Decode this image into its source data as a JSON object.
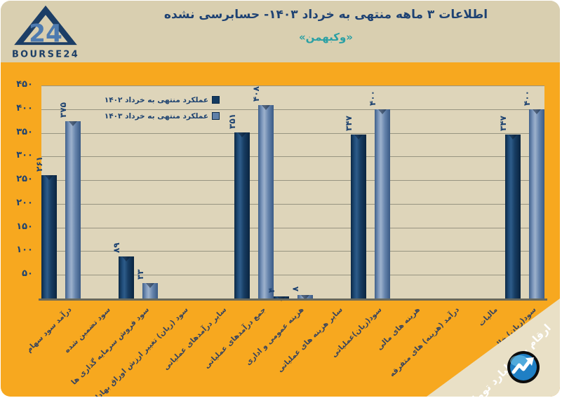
{
  "header": {
    "title": "اطلاعات ۳  ماهه منتهی به خرداد ۱۴۰۳- حسابرسی نشده",
    "subtitle": "«وکبهمن»",
    "logo_number": "24",
    "logo_text": "BOURSE24"
  },
  "chart_data": {
    "type": "bar",
    "title": "اطلاعات ۳ ماهه منتهی به خرداد ۱۴۰۳- حسابرسی نشده «وکبهمن»",
    "unit_note": "ارقام به میلیارد تومان",
    "categories": [
      "درآمد سود سهام",
      "سود تضمین شده",
      "سود فروش سرمایه گذاری ها",
      "سود (زیان) تغییر ارزش اوراق بهادار",
      "سایر درآمدهای عملیاتی",
      "جمع درآمدهای عملیاتی",
      "هزینه عمومی و اداری",
      "سایر هزینه های عملیاتی",
      "سود(زیان)عملیاتی",
      "هزینه های مالی",
      "درآمد (هزینه) های متفرقه",
      "مالیات",
      "سود(زیان) خالص"
    ],
    "series": [
      {
        "name": "عملکرد منتهی به خرداد ۱۴۰۲",
        "color": "#16395f",
        "values": [
          261,
          0,
          89,
          0,
          0,
          351,
          4,
          0,
          347,
          0,
          0,
          0,
          347
        ],
        "value_labels": [
          "۲۶۱",
          "",
          "۸۹",
          "",
          "",
          "۳۵۱",
          "۴",
          "",
          "۳۴۷",
          "",
          "",
          "",
          "۳۴۷"
        ]
      },
      {
        "name": "عملکرد منتهی به خرداد ۱۴۰۳",
        "color": "#6c89b0",
        "values": [
          375,
          0,
          33,
          0,
          0,
          408,
          8,
          0,
          400,
          0,
          0,
          0,
          400
        ],
        "value_labels": [
          "۳۷۵",
          "",
          "۳۳",
          "",
          "",
          "۴۰۸",
          "۸",
          "",
          "۴۰۰",
          "",
          "",
          "",
          "۴۰۰"
        ]
      }
    ],
    "ylim": [
      0,
      450
    ],
    "ytick_step": 50,
    "ytick_labels": [
      "۵۰",
      "۱۰۰",
      "۱۵۰",
      "۲۰۰",
      "۲۵۰",
      "۳۰۰",
      "۳۵۰",
      "۴۰۰",
      "۴۵۰"
    ],
    "grid": true,
    "legend_position": "top-left"
  },
  "colors": {
    "page_bg": "#d9cfb0",
    "panel_bg": "#f7a81f",
    "plot_bg": "#ded5ba",
    "gridline": "#979481",
    "title_text": "#1e4273",
    "subtitle_text": "#2aa0a4",
    "axis_text": "#1d4270",
    "bar_dark": "#16395f",
    "bar_light": "#6c89b0"
  }
}
